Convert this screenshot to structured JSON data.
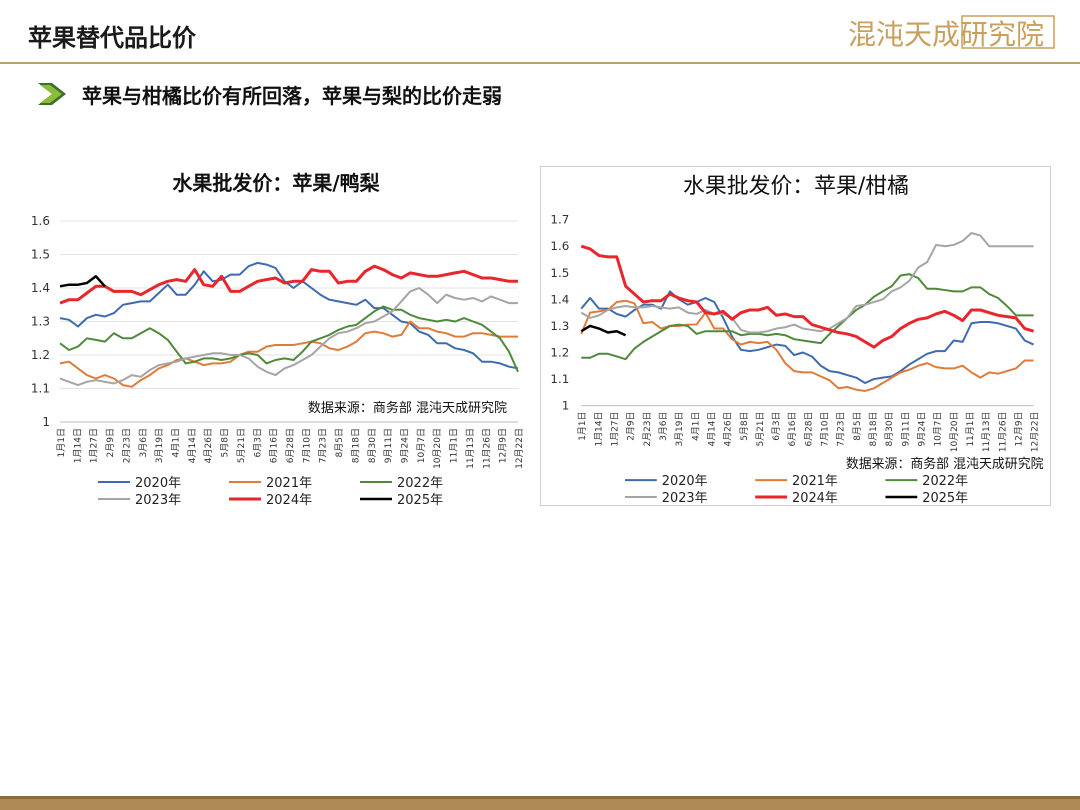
{
  "page_title": "苹果替代品比价",
  "logo_text": "混沌天成研究院",
  "subhead": "苹果与柑橘比价有所回落，苹果与梨的比价走弱",
  "colors": {
    "accent": "#b8a070",
    "s2020": "#3e6bb0",
    "s2021": "#e07b39",
    "s2022": "#4f8a3a",
    "s2023": "#a5a5a5",
    "s2024": "#e8262b",
    "s2025": "#000000"
  },
  "chart_data": [
    {
      "type": "line",
      "title": "水果批发价：苹果/鸭梨",
      "source": "数据来源：商务部 混沌天成研究院",
      "ylim": [
        1,
        1.6
      ],
      "yticks": [
        "1",
        "1.1",
        "1.2",
        "1.3",
        "1.4",
        "1.5",
        "1.6"
      ],
      "xtick_labels": [
        "1月1日",
        "1月14日",
        "1月27日",
        "2月9日",
        "2月23日",
        "3月6日",
        "3月19日",
        "4月1日",
        "4月14日",
        "4月26日",
        "5月8日",
        "5月21日",
        "6月3日",
        "6月16日",
        "6月28日",
        "7月10日",
        "7月23日",
        "8月5日",
        "8月18日",
        "8月30日",
        "9月11日",
        "9月24日",
        "10月7日",
        "10月20日",
        "11月1日",
        "11月13日",
        "11月26日",
        "12月9日",
        "12月22日"
      ],
      "x_max": 52,
      "legend": "bottom",
      "grid": true,
      "series": [
        {
          "name": "2020年",
          "color": "#3e6bb0",
          "width": 2,
          "values": [
            1.31,
            1.305,
            1.285,
            1.31,
            1.32,
            1.315,
            1.325,
            1.35,
            1.355,
            1.36,
            1.36,
            1.385,
            1.41,
            1.38,
            1.38,
            1.41,
            1.45,
            1.42,
            1.425,
            1.44,
            1.44,
            1.465,
            1.475,
            1.47,
            1.46,
            1.42,
            1.4,
            1.42,
            1.4,
            1.38,
            1.365,
            1.36,
            1.355,
            1.35,
            1.365,
            1.34,
            1.34,
            1.32,
            1.3,
            1.295,
            1.27,
            1.26,
            1.235,
            1.235,
            1.22,
            1.215,
            1.205,
            1.18,
            1.18,
            1.175,
            1.165,
            1.16
          ]
        },
        {
          "name": "2021年",
          "color": "#e07b39",
          "width": 2,
          "values": [
            1.175,
            1.18,
            1.16,
            1.14,
            1.13,
            1.14,
            1.13,
            1.11,
            1.105,
            1.125,
            1.14,
            1.16,
            1.17,
            1.185,
            1.19,
            1.18,
            1.17,
            1.175,
            1.175,
            1.18,
            1.2,
            1.21,
            1.21,
            1.225,
            1.23,
            1.23,
            1.23,
            1.235,
            1.24,
            1.235,
            1.22,
            1.215,
            1.225,
            1.24,
            1.265,
            1.27,
            1.265,
            1.255,
            1.26,
            1.3,
            1.28,
            1.28,
            1.27,
            1.265,
            1.255,
            1.255,
            1.265,
            1.265,
            1.26,
            1.255,
            1.255,
            1.255
          ]
        },
        {
          "name": "2022年",
          "color": "#4f8a3a",
          "width": 2,
          "values": [
            1.235,
            1.215,
            1.225,
            1.25,
            1.245,
            1.24,
            1.265,
            1.25,
            1.25,
            1.265,
            1.28,
            1.265,
            1.245,
            1.21,
            1.175,
            1.18,
            1.19,
            1.19,
            1.185,
            1.19,
            1.2,
            1.205,
            1.2,
            1.175,
            1.185,
            1.19,
            1.185,
            1.21,
            1.24,
            1.25,
            1.26,
            1.275,
            1.285,
            1.29,
            1.31,
            1.33,
            1.345,
            1.335,
            1.335,
            1.32,
            1.31,
            1.305,
            1.3,
            1.305,
            1.3,
            1.31,
            1.3,
            1.29,
            1.27,
            1.25,
            1.21,
            1.15
          ]
        },
        {
          "name": "2023年",
          "color": "#a5a5a5",
          "width": 2,
          "values": [
            1.13,
            1.12,
            1.11,
            1.12,
            1.125,
            1.12,
            1.115,
            1.125,
            1.14,
            1.135,
            1.155,
            1.17,
            1.175,
            1.18,
            1.19,
            1.195,
            1.2,
            1.205,
            1.205,
            1.2,
            1.2,
            1.19,
            1.165,
            1.15,
            1.14,
            1.16,
            1.17,
            1.185,
            1.2,
            1.225,
            1.25,
            1.265,
            1.27,
            1.28,
            1.295,
            1.3,
            1.315,
            1.33,
            1.36,
            1.39,
            1.4,
            1.38,
            1.355,
            1.38,
            1.37,
            1.365,
            1.37,
            1.36,
            1.375,
            1.365,
            1.355,
            1.355
          ]
        },
        {
          "name": "2024年",
          "color": "#e8262b",
          "width": 3,
          "values": [
            1.355,
            1.365,
            1.365,
            1.385,
            1.405,
            1.405,
            1.39,
            1.39,
            1.39,
            1.38,
            1.395,
            1.41,
            1.42,
            1.425,
            1.42,
            1.455,
            1.41,
            1.405,
            1.435,
            1.39,
            1.39,
            1.405,
            1.42,
            1.425,
            1.43,
            1.415,
            1.42,
            1.42,
            1.455,
            1.45,
            1.45,
            1.415,
            1.42,
            1.42,
            1.45,
            1.465,
            1.455,
            1.44,
            1.43,
            1.445,
            1.44,
            1.435,
            1.435,
            1.44,
            1.445,
            1.45,
            1.44,
            1.43,
            1.43,
            1.425,
            1.42,
            1.42
          ]
        },
        {
          "name": "2025年",
          "color": "#000000",
          "width": 2.5,
          "values": [
            1.405,
            1.41,
            1.41,
            1.415,
            1.435,
            1.405
          ]
        }
      ]
    },
    {
      "type": "line",
      "title": "水果批发价：苹果/柑橘",
      "source": "数据来源：商务部 混沌天成研究院",
      "ylim": [
        1,
        1.7
      ],
      "yticks": [
        "1",
        "1.1",
        "1.2",
        "1.3",
        "1.4",
        "1.5",
        "1.6",
        "1.7"
      ],
      "xtick_labels": [
        "1月1日",
        "1月14日",
        "1月27日",
        "2月9日",
        "2月23日",
        "3月6日",
        "3月19日",
        "4月1日",
        "4月14日",
        "4月26日",
        "5月8日",
        "5月21日",
        "6月3日",
        "6月16日",
        "6月28日",
        "7月10日",
        "7月23日",
        "8月5日",
        "8月18日",
        "8月30日",
        "9月11日",
        "9月24日",
        "10月7日",
        "10月20日",
        "11月1日",
        "11月13日",
        "11月26日",
        "12月9日",
        "12月22日"
      ],
      "x_max": 52,
      "legend": "bottom",
      "grid": false,
      "series": [
        {
          "name": "2020年",
          "color": "#3e6bb0",
          "width": 2,
          "values": [
            1.365,
            1.405,
            1.365,
            1.365,
            1.345,
            1.335,
            1.36,
            1.38,
            1.38,
            1.365,
            1.43,
            1.4,
            1.38,
            1.39,
            1.405,
            1.39,
            1.33,
            1.26,
            1.21,
            1.205,
            1.21,
            1.22,
            1.23,
            1.225,
            1.19,
            1.2,
            1.185,
            1.15,
            1.13,
            1.125,
            1.115,
            1.105,
            1.085,
            1.1,
            1.105,
            1.11,
            1.13,
            1.155,
            1.175,
            1.195,
            1.205,
            1.205,
            1.245,
            1.24,
            1.31,
            1.315,
            1.315,
            1.31,
            1.3,
            1.29,
            1.245,
            1.23
          ]
        },
        {
          "name": "2021年",
          "color": "#e07b39",
          "width": 2,
          "values": [
            1.27,
            1.35,
            1.355,
            1.36,
            1.39,
            1.395,
            1.385,
            1.31,
            1.315,
            1.29,
            1.3,
            1.3,
            1.305,
            1.305,
            1.35,
            1.29,
            1.29,
            1.25,
            1.23,
            1.24,
            1.235,
            1.24,
            1.21,
            1.16,
            1.13,
            1.125,
            1.125,
            1.11,
            1.095,
            1.065,
            1.07,
            1.06,
            1.055,
            1.065,
            1.085,
            1.105,
            1.125,
            1.135,
            1.15,
            1.16,
            1.145,
            1.14,
            1.14,
            1.15,
            1.125,
            1.105,
            1.125,
            1.12,
            1.13,
            1.14,
            1.17,
            1.17
          ]
        },
        {
          "name": "2022年",
          "color": "#4f8a3a",
          "width": 2,
          "values": [
            1.18,
            1.18,
            1.195,
            1.195,
            1.185,
            1.175,
            1.215,
            1.24,
            1.26,
            1.28,
            1.3,
            1.305,
            1.3,
            1.27,
            1.28,
            1.28,
            1.28,
            1.28,
            1.265,
            1.27,
            1.27,
            1.265,
            1.27,
            1.265,
            1.25,
            1.245,
            1.24,
            1.235,
            1.27,
            1.3,
            1.33,
            1.36,
            1.38,
            1.41,
            1.43,
            1.45,
            1.49,
            1.495,
            1.48,
            1.44,
            1.44,
            1.435,
            1.43,
            1.43,
            1.445,
            1.445,
            1.42,
            1.405,
            1.375,
            1.34,
            1.34,
            1.34
          ]
        },
        {
          "name": "2023年",
          "color": "#a5a5a5",
          "width": 2,
          "values": [
            1.35,
            1.33,
            1.34,
            1.36,
            1.37,
            1.375,
            1.37,
            1.37,
            1.375,
            1.37,
            1.365,
            1.37,
            1.35,
            1.345,
            1.36,
            1.345,
            1.345,
            1.33,
            1.285,
            1.275,
            1.275,
            1.28,
            1.29,
            1.295,
            1.305,
            1.29,
            1.285,
            1.28,
            1.29,
            1.31,
            1.33,
            1.375,
            1.38,
            1.39,
            1.4,
            1.43,
            1.445,
            1.47,
            1.52,
            1.54,
            1.605,
            1.6,
            1.605,
            1.62,
            1.65,
            1.64,
            1.6,
            1.6,
            1.6,
            1.6,
            1.6,
            1.6
          ]
        },
        {
          "name": "2024年",
          "color": "#e8262b",
          "width": 3,
          "values": [
            1.6,
            1.59,
            1.565,
            1.56,
            1.56,
            1.45,
            1.42,
            1.39,
            1.395,
            1.395,
            1.42,
            1.405,
            1.395,
            1.39,
            1.35,
            1.345,
            1.355,
            1.325,
            1.35,
            1.36,
            1.36,
            1.37,
            1.34,
            1.345,
            1.335,
            1.335,
            1.305,
            1.295,
            1.285,
            1.275,
            1.27,
            1.26,
            1.24,
            1.22,
            1.245,
            1.26,
            1.29,
            1.31,
            1.325,
            1.33,
            1.345,
            1.355,
            1.34,
            1.32,
            1.36,
            1.36,
            1.35,
            1.34,
            1.335,
            1.33,
            1.29,
            1.28
          ]
        },
        {
          "name": "2025年",
          "color": "#000000",
          "width": 2.5,
          "values": [
            1.28,
            1.3,
            1.29,
            1.275,
            1.28,
            1.265
          ]
        }
      ]
    }
  ]
}
